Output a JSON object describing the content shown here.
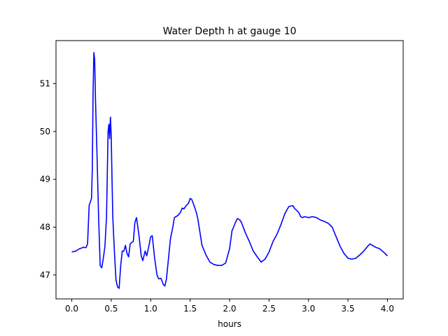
{
  "chart_data": {
    "type": "line",
    "title": "Water Depth h at gauge 10",
    "xlabel": "hours",
    "ylabel": "",
    "xlim": [
      -0.2,
      4.2
    ],
    "ylim": [
      46.5,
      51.9
    ],
    "x_ticks": [
      0.0,
      0.5,
      1.0,
      1.5,
      2.0,
      2.5,
      3.0,
      3.5,
      4.0
    ],
    "x_tick_labels": [
      "0.0",
      "0.5",
      "1.0",
      "1.5",
      "2.0",
      "2.5",
      "3.0",
      "3.5",
      "4.0"
    ],
    "y_ticks": [
      47,
      48,
      49,
      50,
      51
    ],
    "y_tick_labels": [
      "47",
      "48",
      "49",
      "50",
      "51"
    ],
    "grid": false,
    "legend": "none",
    "series": [
      {
        "color": "#0000ff",
        "x": [
          0.0,
          0.05,
          0.1,
          0.15,
          0.18,
          0.2,
          0.22,
          0.25,
          0.26,
          0.27,
          0.28,
          0.29,
          0.3,
          0.32,
          0.34,
          0.36,
          0.38,
          0.4,
          0.42,
          0.44,
          0.46,
          0.47,
          0.48,
          0.49,
          0.5,
          0.51,
          0.52,
          0.54,
          0.56,
          0.58,
          0.6,
          0.62,
          0.64,
          0.66,
          0.68,
          0.7,
          0.72,
          0.74,
          0.76,
          0.78,
          0.8,
          0.82,
          0.85,
          0.88,
          0.9,
          0.93,
          0.95,
          0.97,
          1.0,
          1.02,
          1.05,
          1.08,
          1.1,
          1.13,
          1.16,
          1.18,
          1.2,
          1.22,
          1.25,
          1.28,
          1.3,
          1.35,
          1.38,
          1.4,
          1.42,
          1.45,
          1.48,
          1.5,
          1.52,
          1.55,
          1.58,
          1.6,
          1.65,
          1.7,
          1.75,
          1.8,
          1.85,
          1.9,
          1.95,
          2.0,
          2.03,
          2.05,
          2.08,
          2.1,
          2.13,
          2.15,
          2.2,
          2.25,
          2.3,
          2.35,
          2.4,
          2.45,
          2.5,
          2.55,
          2.6,
          2.65,
          2.7,
          2.75,
          2.8,
          2.83,
          2.85,
          2.88,
          2.9,
          2.92,
          2.95,
          3.0,
          3.05,
          3.1,
          3.15,
          3.2,
          3.25,
          3.3,
          3.35,
          3.4,
          3.45,
          3.5,
          3.55,
          3.6,
          3.65,
          3.7,
          3.75,
          3.78,
          3.8,
          3.85,
          3.9,
          3.95,
          4.0
        ],
        "y": [
          47.48,
          47.5,
          47.55,
          47.58,
          47.57,
          47.65,
          48.45,
          48.6,
          49.2,
          50.8,
          51.65,
          51.5,
          50.7,
          49.5,
          48.2,
          47.2,
          47.15,
          47.35,
          47.6,
          48.2,
          50.0,
          50.15,
          49.85,
          50.3,
          49.9,
          49.0,
          48.2,
          47.5,
          46.9,
          46.75,
          46.72,
          47.2,
          47.5,
          47.5,
          47.62,
          47.45,
          47.38,
          47.65,
          47.68,
          47.7,
          48.1,
          48.2,
          47.85,
          47.4,
          47.3,
          47.5,
          47.4,
          47.55,
          47.8,
          47.82,
          47.35,
          47.0,
          46.92,
          46.93,
          46.8,
          46.77,
          46.92,
          47.25,
          47.75,
          48.0,
          48.2,
          48.25,
          48.32,
          48.4,
          48.38,
          48.45,
          48.5,
          48.6,
          48.58,
          48.45,
          48.3,
          48.15,
          47.62,
          47.42,
          47.27,
          47.22,
          47.2,
          47.2,
          47.25,
          47.55,
          47.92,
          48.0,
          48.12,
          48.18,
          48.15,
          48.1,
          47.88,
          47.7,
          47.5,
          47.38,
          47.27,
          47.33,
          47.48,
          47.7,
          47.85,
          48.05,
          48.28,
          48.43,
          48.45,
          48.38,
          48.35,
          48.3,
          48.22,
          48.2,
          48.22,
          48.2,
          48.22,
          48.2,
          48.15,
          48.12,
          48.08,
          48.0,
          47.8,
          47.6,
          47.45,
          47.35,
          47.33,
          47.35,
          47.42,
          47.5,
          47.6,
          47.65,
          47.63,
          47.58,
          47.55,
          47.48,
          47.4
        ]
      }
    ]
  }
}
